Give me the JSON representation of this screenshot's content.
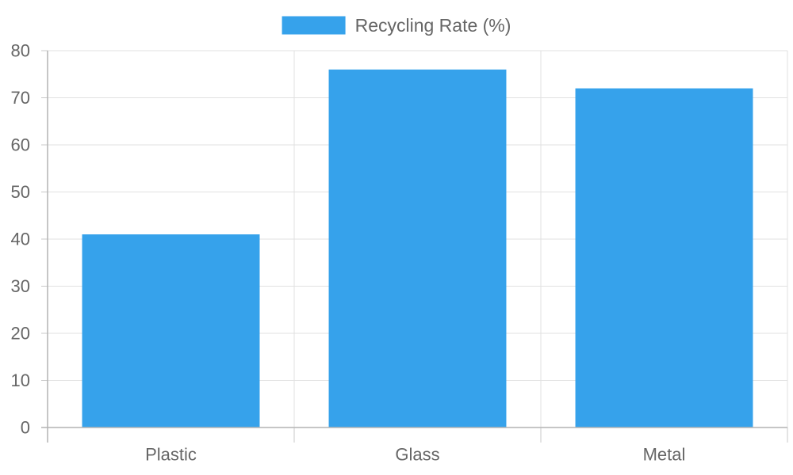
{
  "chart_data": {
    "type": "bar",
    "categories": [
      "Plastic",
      "Glass",
      "Metal"
    ],
    "series": [
      {
        "name": "Recycling Rate (%)",
        "values": [
          41,
          76,
          72
        ],
        "color": "#36a2eb"
      }
    ],
    "title": "",
    "xlabel": "",
    "ylabel": "",
    "ylim": [
      0,
      80
    ],
    "yticks": [
      0,
      10,
      20,
      30,
      40,
      50,
      60,
      70,
      80
    ],
    "grid": true,
    "legend": "top-center"
  }
}
